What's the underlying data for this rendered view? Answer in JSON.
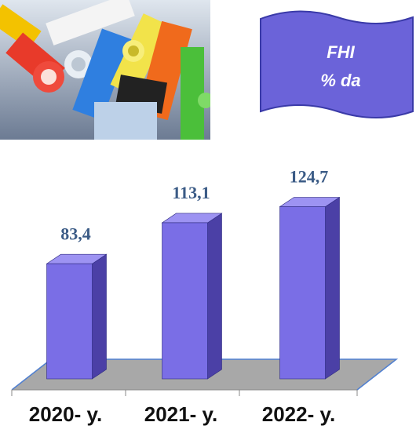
{
  "chart_data": {
    "type": "bar3d",
    "title": "FHI",
    "subtitle": "% da",
    "categories": [
      "2020- y.",
      "2021- y.",
      "2022- y."
    ],
    "values": [
      83.4,
      113.1,
      124.7
    ],
    "value_labels": [
      "83,4",
      "113,1",
      "124,7"
    ],
    "color": "#7a6ee6"
  }
}
